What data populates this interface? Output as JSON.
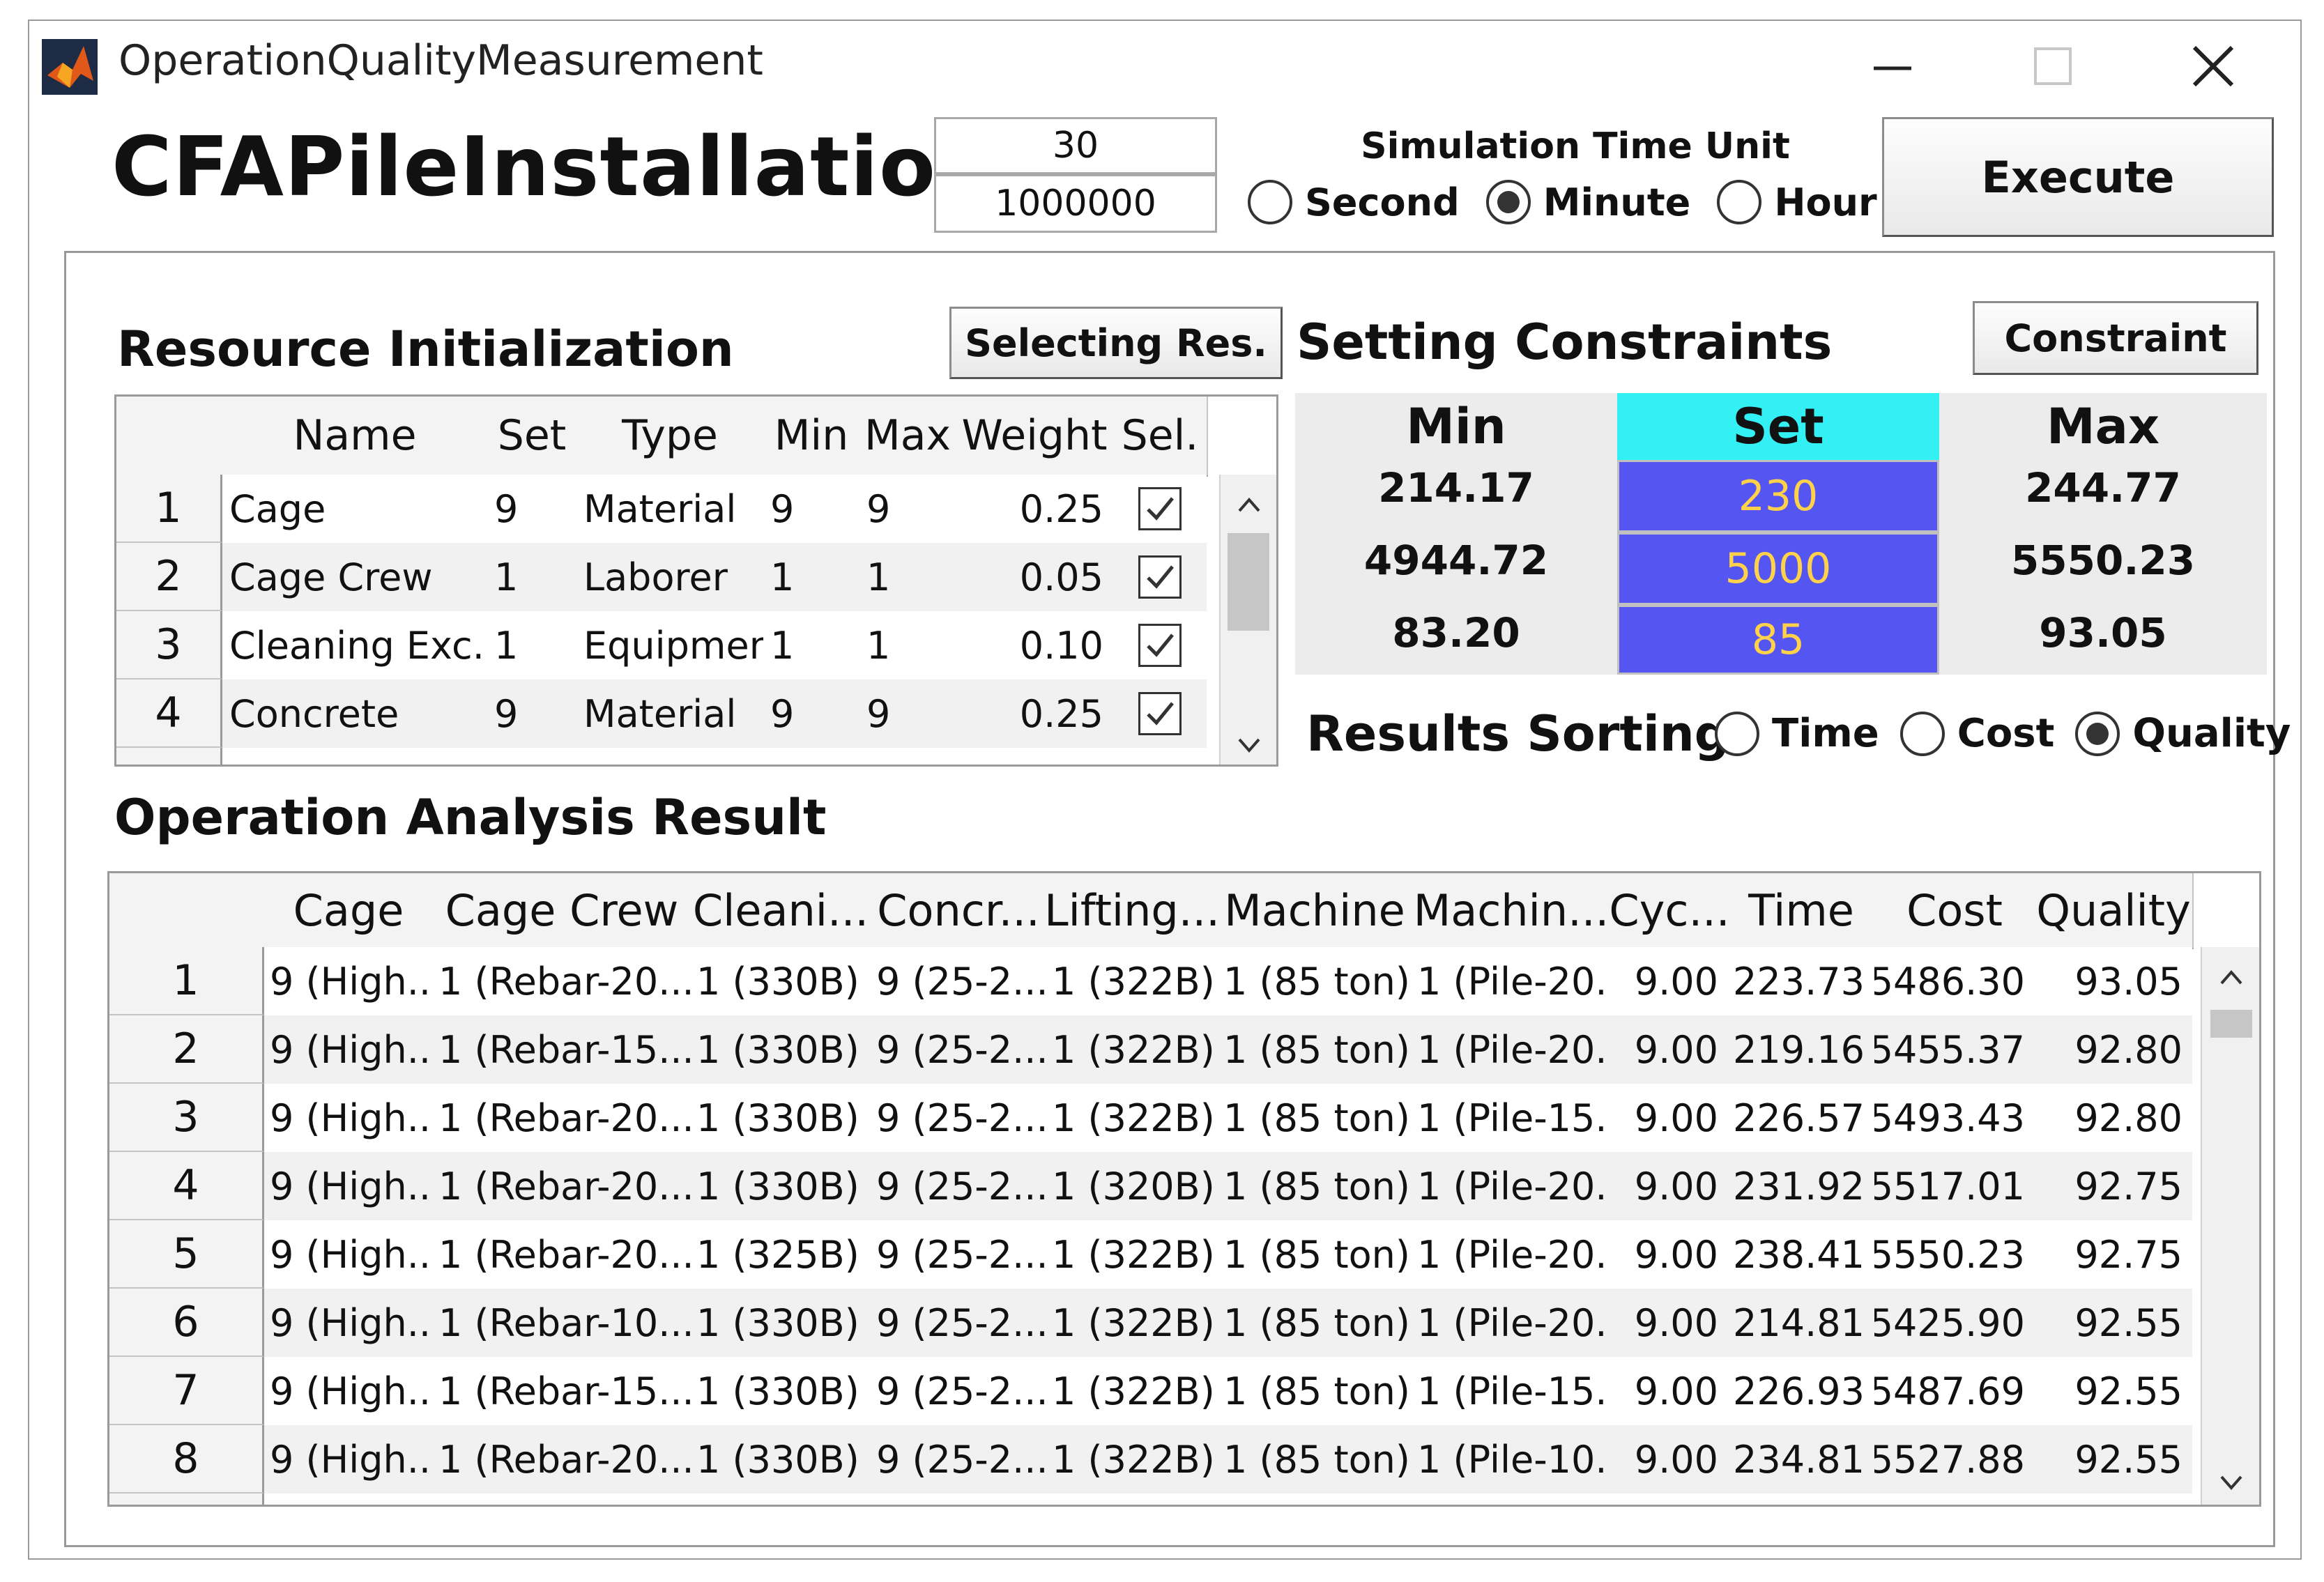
{
  "window": {
    "title": "OperationQualityMeasurement",
    "minimize_glyph": "—",
    "maximize_glyph": "☐",
    "close_glyph": "✕"
  },
  "header": {
    "app_title": "CFAPileInstallation",
    "field_time": "30",
    "field_iterations": "1000000",
    "time_unit_label": "Simulation Time Unit",
    "time_unit_options": [
      "Second",
      "Minute",
      "Hour"
    ],
    "time_unit_selected": "Minute",
    "execute_label": "Execute"
  },
  "resource": {
    "title": "Resource Initialization",
    "select_button": "Selecting Res.",
    "columns": [
      "Name",
      "Set",
      "Type",
      "Min",
      "Max",
      "Weight",
      "Sel."
    ],
    "rows": [
      {
        "num": "1",
        "name": "Cage",
        "set": "9",
        "type": "Material",
        "min": "9",
        "max": "9",
        "weight": "0.25",
        "sel": true
      },
      {
        "num": "2",
        "name": "Cage Crew",
        "set": "1",
        "type": "Laborer",
        "min": "1",
        "max": "1",
        "weight": "0.05",
        "sel": true
      },
      {
        "num": "3",
        "name": "Cleaning Exc...",
        "set": "1",
        "type": "Equipment",
        "min": "1",
        "max": "1",
        "weight": "0.10",
        "sel": true
      },
      {
        "num": "4",
        "name": "Concrete",
        "set": "9",
        "type": "Material",
        "min": "9",
        "max": "9",
        "weight": "0.25",
        "sel": true
      }
    ]
  },
  "constraints": {
    "title": "Setting Constraints",
    "button": "Constraint",
    "headers": [
      "Min",
      "Set",
      "Max"
    ],
    "rows": [
      {
        "min": "214.17",
        "set": "230",
        "max": "244.77"
      },
      {
        "min": "4944.72",
        "set": "5000",
        "max": "5550.23"
      },
      {
        "min": "83.20",
        "set": "85",
        "max": "93.05"
      }
    ],
    "colors": {
      "set_header": "#33f0f5",
      "set_cell": "#5555f2",
      "set_text": "#ffd24a"
    }
  },
  "sorting": {
    "label": "Results Sorting",
    "options": [
      "Time",
      "Cost",
      "Quality"
    ],
    "selected": "Quality"
  },
  "analysis": {
    "title": "Operation Analysis Result",
    "columns": [
      "Cage",
      "Cage Crew",
      "Cleani...",
      "Concr...",
      "Lifting...",
      "Machine",
      "Machin...",
      "Cyc...",
      "Time",
      "Cost",
      "Quality"
    ],
    "rows": [
      [
        "1",
        "9 (High...",
        "1 (Rebar-20...",
        "1 (330B)",
        "9 (25-2...",
        "1 (322B)",
        "1 (85 ton)",
        "1 (Pile-20...",
        "9.00",
        "223.73",
        "5486.30",
        "93.05"
      ],
      [
        "2",
        "9 (High...",
        "1 (Rebar-15...",
        "1 (330B)",
        "9 (25-2...",
        "1 (322B)",
        "1 (85 ton)",
        "1 (Pile-20...",
        "9.00",
        "219.16",
        "5455.37",
        "92.80"
      ],
      [
        "3",
        "9 (High...",
        "1 (Rebar-20...",
        "1 (330B)",
        "9 (25-2...",
        "1 (322B)",
        "1 (85 ton)",
        "1 (Pile-15...",
        "9.00",
        "226.57",
        "5493.43",
        "92.80"
      ],
      [
        "4",
        "9 (High...",
        "1 (Rebar-20...",
        "1 (330B)",
        "9 (25-2...",
        "1 (320B)",
        "1 (85 ton)",
        "1 (Pile-20...",
        "9.00",
        "231.92",
        "5517.01",
        "92.75"
      ],
      [
        "5",
        "9 (High...",
        "1 (Rebar-20...",
        "1 (325B)",
        "9 (25-2...",
        "1 (322B)",
        "1 (85 ton)",
        "1 (Pile-20...",
        "9.00",
        "238.41",
        "5550.23",
        "92.75"
      ],
      [
        "6",
        "9 (High...",
        "1 (Rebar-10...",
        "1 (330B)",
        "9 (25-2...",
        "1 (322B)",
        "1 (85 ton)",
        "1 (Pile-20...",
        "9.00",
        "214.81",
        "5425.90",
        "92.55"
      ],
      [
        "7",
        "9 (High...",
        "1 (Rebar-15...",
        "1 (330B)",
        "9 (25-2...",
        "1 (322B)",
        "1 (85 ton)",
        "1 (Pile-15...",
        "9.00",
        "226.93",
        "5487.69",
        "92.55"
      ],
      [
        "8",
        "9 (High...",
        "1 (Rebar-20...",
        "1 (330B)",
        "9 (25-2...",
        "1 (322B)",
        "1 (85 ton)",
        "1 (Pile-10...",
        "9.00",
        "234.81",
        "5527.88",
        "92.55"
      ]
    ]
  }
}
